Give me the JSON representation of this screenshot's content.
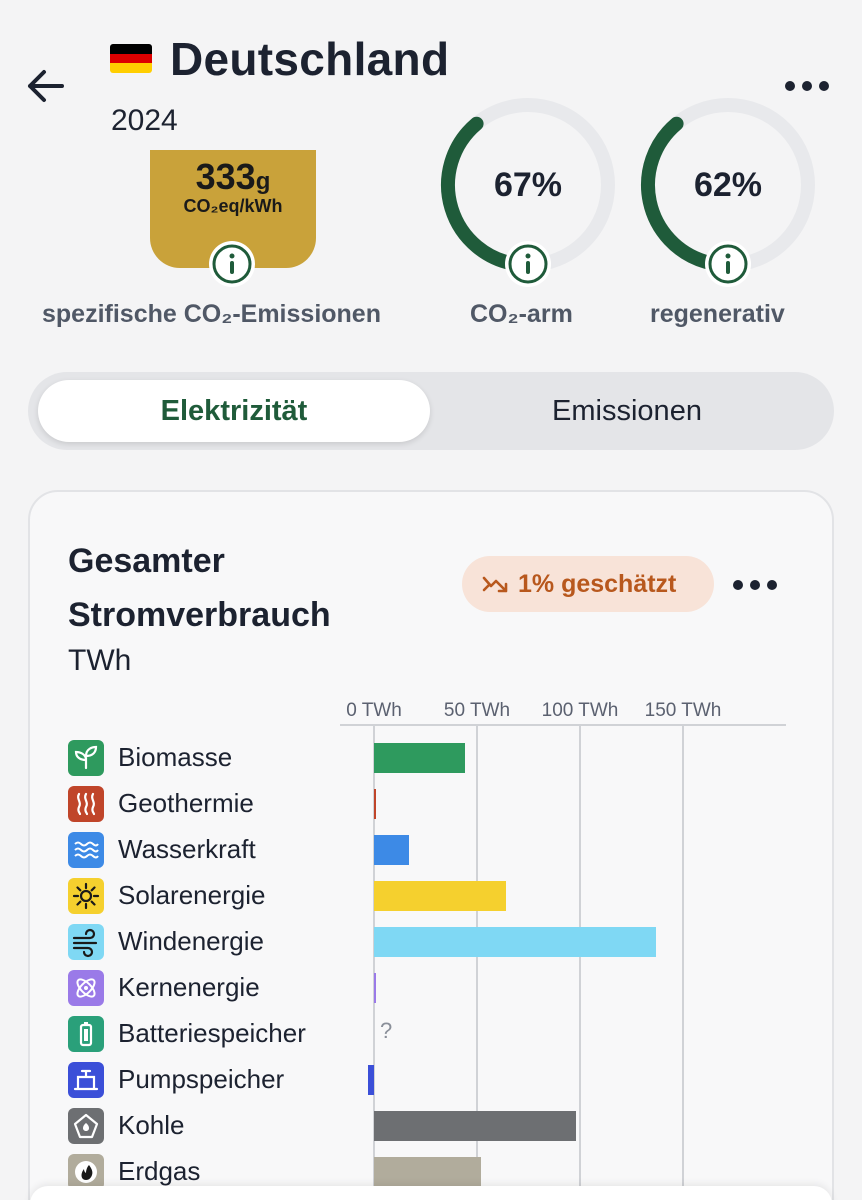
{
  "header": {
    "title": "Deutschland",
    "year": "2024",
    "flag_colors": [
      "#000000",
      "#dd0000",
      "#ffce00"
    ]
  },
  "kpis": {
    "co2": {
      "value": "333",
      "value_unit": "g",
      "unit_line": "CO₂eq/kWh",
      "label": "spezifische CO₂-Emissionen"
    },
    "low_carbon": {
      "value": "67%",
      "label": "CO₂-arm",
      "fraction": 0.67
    },
    "renewable": {
      "value": "62%",
      "label": "regenerativ",
      "fraction": 0.62
    }
  },
  "tabs": {
    "active": "Elektrizität",
    "inactive": "Emissionen"
  },
  "card": {
    "title": "Gesamter Stromverbrauch",
    "unit": "TWh",
    "badge": "1% geschätzt"
  },
  "chart_data": {
    "type": "bar",
    "orientation": "horizontal",
    "unit": "TWh",
    "xlim": [
      0,
      200
    ],
    "ticks": [
      "0 TWh",
      "50 TWh",
      "100 TWh",
      "150 TWh"
    ],
    "categories": [
      "Biomasse",
      "Geothermie",
      "Wasserkraft",
      "Solarenergie",
      "Windenergie",
      "Kernenergie",
      "Batteriespeicher",
      "Pumpspeicher",
      "Kohle",
      "Erdgas"
    ],
    "values": [
      44,
      0.2,
      17,
      64,
      137,
      0,
      null,
      -3,
      98,
      52
    ],
    "colors": [
      "#2e9a5e",
      "#c0452a",
      "#3d8ae6",
      "#f5d02e",
      "#7fd8f4",
      "#9a7ae8",
      "#2aa07a",
      "#3b4fd8",
      "#6d6f72",
      "#b1ac9c"
    ],
    "icons": [
      "leaf-icon",
      "geothermal-icon",
      "water-icon",
      "sun-icon",
      "wind-icon",
      "atom-icon",
      "battery-icon",
      "pump-storage-icon",
      "coal-icon",
      "gas-flame-icon"
    ],
    "missing_marker": "?"
  },
  "colors": {
    "accent_green": "#1f5b3a",
    "gold": "#c9a23a",
    "badge_orange": "#b8581d"
  }
}
